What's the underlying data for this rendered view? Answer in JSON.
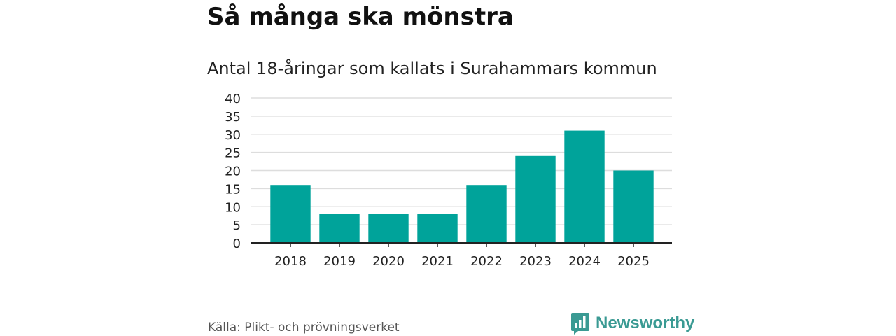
{
  "header": {
    "title": "Så många ska mönstra",
    "subtitle": "Antal 18-åringar som kallats i Surahammars kommun"
  },
  "footer": {
    "source": "Källa: Plikt- och prövningsverket",
    "brand": "Newsworthy",
    "brand_icon": "bar-chart-speech-bubble-icon",
    "brand_color": "#3a9a93"
  },
  "chart_data": {
    "type": "bar",
    "title": "Så många ska mönstra",
    "subtitle": "Antal 18-åringar som kallats i Surahammars kommun",
    "xlabel": "",
    "ylabel": "",
    "categories": [
      "2018",
      "2019",
      "2020",
      "2021",
      "2022",
      "2023",
      "2024",
      "2025"
    ],
    "values": [
      16,
      8,
      8,
      8,
      16,
      24,
      31,
      20
    ],
    "ylim": [
      0,
      40
    ],
    "yticks": [
      0,
      5,
      10,
      15,
      20,
      25,
      30,
      35,
      40
    ],
    "grid": true,
    "bar_color": "#00a39a"
  }
}
